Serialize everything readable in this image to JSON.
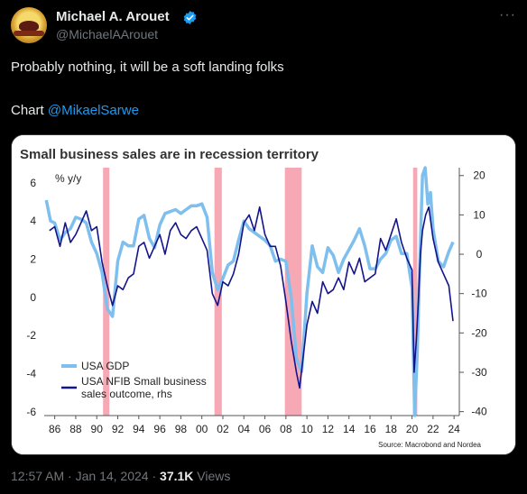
{
  "tweet": {
    "author_name": "Michael A. Arouet",
    "handle": "@MichaelAArouet",
    "more_icon": "more-horizontal-icon",
    "text_line1": "Probably nothing, it will be a soft landing folks",
    "text_line2_prefix": "Chart ",
    "mention": "@MikaelSarwe",
    "time": "12:57 AM",
    "separator": "·",
    "date": "Jan 14, 2024",
    "views_count": "37.1K",
    "views_label": "Views"
  },
  "colors": {
    "verified": "#1d9bf0",
    "link": "#1d9bf0",
    "gdp_line": "#7fbfee",
    "nfib_line": "#14148a",
    "recession": "#f7a8b5"
  },
  "chart_data": {
    "type": "line",
    "title": "Small business sales are in recession territory",
    "ylabel_left": "% y/y",
    "source": "Source: Macrobond and Nordea",
    "x_ticks": [
      "86",
      "88",
      "90",
      "92",
      "94",
      "96",
      "98",
      "00",
      "02",
      "04",
      "06",
      "08",
      "10",
      "12",
      "14",
      "16",
      "18",
      "20",
      "22",
      "24"
    ],
    "x_range": [
      1985,
      2024.5
    ],
    "y_left_ticks": [
      "6",
      "4",
      "2",
      "0",
      "-2",
      "-4",
      "-6"
    ],
    "y_left_range": [
      -6.2,
      6.8
    ],
    "y_right_ticks": [
      "20",
      "10",
      "0",
      "-10",
      "-20",
      "-30",
      "-40"
    ],
    "y_right_range": [
      -41,
      22
    ],
    "recessions": [
      [
        1990.6,
        1991.2
      ],
      [
        2001.2,
        2001.9
      ],
      [
        2007.9,
        2009.5
      ],
      [
        2020.1,
        2020.5
      ]
    ],
    "legend": [
      "USA GDP",
      "USA NFIB Small business sales outcome, rhs"
    ],
    "series": [
      {
        "name": "USA GDP",
        "axis": "left",
        "x": [
          1985.2,
          1985.6,
          1986.0,
          1986.5,
          1987.0,
          1987.5,
          1988.0,
          1988.5,
          1989.0,
          1989.5,
          1990.0,
          1990.5,
          1991.0,
          1991.5,
          1992.0,
          1992.5,
          1993.0,
          1993.5,
          1994.0,
          1994.5,
          1995.0,
          1995.5,
          1996.0,
          1996.5,
          1997.0,
          1997.5,
          1998.0,
          1998.5,
          1999.0,
          1999.5,
          2000.0,
          2000.5,
          2001.0,
          2001.5,
          2002.0,
          2002.5,
          2003.0,
          2003.5,
          2004.0,
          2004.5,
          2005.0,
          2005.5,
          2006.0,
          2006.5,
          2007.0,
          2007.5,
          2008.0,
          2008.5,
          2009.0,
          2009.5,
          2010.0,
          2010.5,
          2011.0,
          2011.5,
          2012.0,
          2012.5,
          2013.0,
          2013.5,
          2014.0,
          2014.5,
          2015.0,
          2015.5,
          2016.0,
          2016.5,
          2017.0,
          2017.5,
          2018.0,
          2018.5,
          2019.0,
          2019.5,
          2020.0,
          2020.25,
          2020.5,
          2020.75,
          2021.0,
          2021.25,
          2021.5,
          2021.75,
          2022.0,
          2022.5,
          2023.0,
          2023.5,
          2023.9
        ],
        "y": [
          5.1,
          4.0,
          3.9,
          3.0,
          3.4,
          3.6,
          4.2,
          4.1,
          3.9,
          2.9,
          2.3,
          1.3,
          -0.6,
          -1.0,
          1.9,
          2.9,
          2.7,
          2.7,
          4.1,
          4.3,
          3.1,
          2.6,
          3.8,
          4.4,
          4.5,
          4.6,
          4.4,
          4.6,
          4.8,
          4.8,
          4.9,
          4.2,
          1.3,
          0.4,
          1.0,
          1.7,
          1.9,
          3.0,
          4.0,
          3.6,
          3.4,
          3.2,
          3.0,
          2.7,
          1.9,
          2.0,
          1.9,
          0.0,
          -3.2,
          -3.9,
          0.2,
          2.7,
          1.6,
          1.3,
          2.6,
          2.2,
          1.3,
          2.0,
          2.5,
          3.0,
          3.6,
          2.7,
          1.5,
          1.5,
          2.0,
          2.3,
          3.0,
          3.2,
          2.3,
          2.3,
          0.5,
          -9.0,
          -2.9,
          2.0,
          6.4,
          12.4,
          4.9,
          5.5,
          3.6,
          1.9,
          1.6,
          2.4,
          2.9
        ]
      },
      {
        "name": "USA NFIB Small business sales outcome, rhs",
        "axis": "right",
        "x": [
          1985.5,
          1986.0,
          1986.5,
          1987.0,
          1987.5,
          1988.0,
          1988.5,
          1989.0,
          1989.5,
          1990.0,
          1990.5,
          1991.0,
          1991.5,
          1992.0,
          1992.5,
          1993.0,
          1993.5,
          1994.0,
          1994.5,
          1995.0,
          1995.5,
          1996.0,
          1996.5,
          1997.0,
          1997.5,
          1998.0,
          1998.5,
          1999.0,
          1999.5,
          2000.0,
          2000.5,
          2001.0,
          2001.5,
          2002.0,
          2002.5,
          2003.0,
          2003.5,
          2004.0,
          2004.5,
          2005.0,
          2005.5,
          2006.0,
          2006.5,
          2007.0,
          2007.5,
          2008.0,
          2008.5,
          2009.0,
          2009.3,
          2009.6,
          2010.0,
          2010.5,
          2011.0,
          2011.5,
          2012.0,
          2012.5,
          2013.0,
          2013.5,
          2014.0,
          2014.5,
          2015.0,
          2015.5,
          2016.0,
          2016.5,
          2017.0,
          2017.5,
          2018.0,
          2018.5,
          2019.0,
          2019.5,
          2020.0,
          2020.2,
          2020.4,
          2020.6,
          2020.8,
          2021.0,
          2021.3,
          2021.6,
          2022.0,
          2022.5,
          2023.0,
          2023.5,
          2023.9
        ],
        "y": [
          6,
          7,
          2,
          8,
          3,
          5,
          8,
          11,
          6,
          7,
          -2,
          -8,
          -13,
          -8,
          -9,
          -6,
          -5,
          2,
          3,
          -1,
          2,
          5,
          0,
          6,
          8,
          5,
          4,
          6,
          7,
          4,
          1,
          -10,
          -13,
          -7,
          -8,
          -5,
          0,
          8,
          10,
          6,
          12,
          5,
          2,
          2,
          -3,
          -12,
          -22,
          -30,
          -34,
          -27,
          -18,
          -12,
          -15,
          -7,
          -10,
          -9,
          -6,
          -9,
          -2,
          -5,
          -1,
          -7,
          -6,
          -5,
          4,
          1,
          5,
          9,
          3,
          -1,
          -4,
          -30,
          -22,
          -12,
          0,
          6,
          10,
          12,
          4,
          -2,
          -5,
          -8,
          -17
        ]
      }
    ]
  }
}
